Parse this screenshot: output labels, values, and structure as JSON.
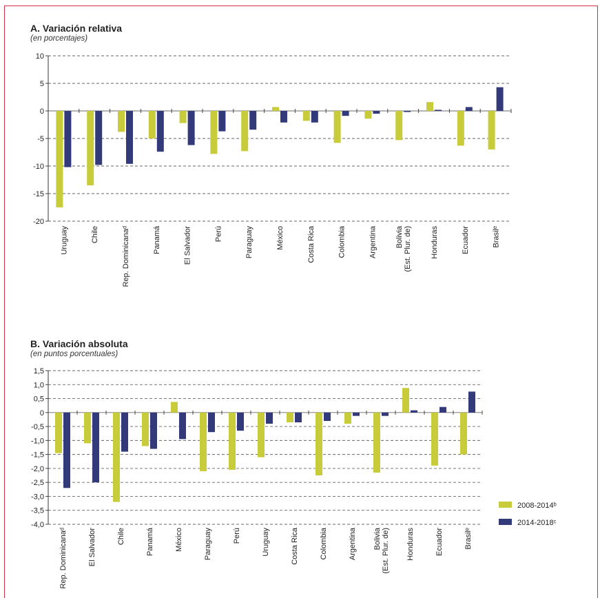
{
  "colors": {
    "series1": "#c8cc3a",
    "series2": "#333a79",
    "frame": "#cf2f45",
    "grid": "#555555"
  },
  "panel_a": {
    "title": "A. Variación relativa",
    "subtitle": "(en porcentajes)"
  },
  "panel_b": {
    "title": "B. Variación absoluta",
    "subtitle": "(en puntos porcentuales)"
  },
  "chart_data": [
    {
      "type": "bar",
      "title": "A. Variación relativa",
      "subtitle": "(en porcentajes)",
      "categories": [
        "Uruguay",
        "Chile",
        "Rep. Dominicanaᵈ",
        "Panamá",
        "El Salvador",
        "Perú",
        "Paraguay",
        "México",
        "Costa Rica",
        "Colombia",
        "Argentina",
        "Bolivia (Est. Plur. de)",
        "Honduras",
        "Ecuador",
        "Brasilᵉ"
      ],
      "series": [
        {
          "values": [
            -17.5,
            -13.5,
            -3.8,
            -5.0,
            -2.2,
            -7.8,
            -7.3,
            0.7,
            -1.8,
            -5.8,
            -1.4,
            -5.3,
            1.6,
            -6.3,
            -7.0
          ]
        },
        {
          "values": [
            -10.2,
            -9.8,
            -9.6,
            -7.4,
            -6.2,
            -3.7,
            -3.4,
            -2.1,
            -2.1,
            -0.9,
            -0.5,
            -0.2,
            0.2,
            0.7,
            4.3
          ]
        }
      ],
      "yticks": [
        "10",
        "5",
        "0",
        "-5",
        "-10",
        "-15",
        "-20"
      ],
      "ylim": [
        -20,
        10
      ],
      "grid": true
    },
    {
      "type": "bar",
      "title": "B. Variación absoluta",
      "subtitle": "(en puntos porcentuales)",
      "categories": [
        "Rep. Dominicanaᵈ",
        "El Salvador",
        "Chile",
        "Panamá",
        "México",
        "Paraguay",
        "Perú",
        "Uruguay",
        "Costa Rica",
        "Colombia",
        "Argentina",
        "Bolivia (Est. Plur. de)",
        "Honduras",
        "Ecuador",
        "Brasilᵉ"
      ],
      "series": [
        {
          "name": "2008-2014ᵇ",
          "values": [
            -1.45,
            -1.1,
            -3.2,
            -1.2,
            0.38,
            -2.1,
            -2.05,
            -1.6,
            -0.35,
            -2.25,
            -0.4,
            -2.15,
            0.88,
            -1.9,
            -1.5
          ]
        },
        {
          "name": "2014-2018ᶜ",
          "values": [
            -2.7,
            -2.5,
            -1.4,
            -1.3,
            -0.95,
            -0.7,
            -0.65,
            -0.4,
            -0.35,
            -0.3,
            -0.12,
            -0.12,
            0.08,
            0.2,
            0.75
          ]
        }
      ],
      "yticks": [
        "1,5",
        "1,0",
        "0,5",
        "0",
        "-0,5",
        "-1,0",
        "-1,5",
        "-2,0",
        "-2,5",
        "-3,0",
        "-3,5",
        "-4,0"
      ],
      "ylim": [
        -4.0,
        1.5
      ],
      "grid": true,
      "legend": "right"
    }
  ]
}
